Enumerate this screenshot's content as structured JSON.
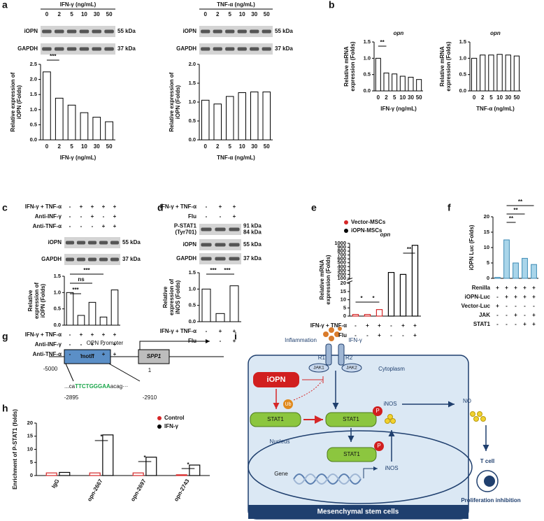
{
  "figure": {
    "panels": [
      "a",
      "b",
      "c",
      "d",
      "e",
      "f",
      "g",
      "h",
      "i"
    ]
  },
  "blots": [
    {
      "header": "IFN-γ (ng/mL)",
      "lanes": [
        "0",
        "2",
        "5",
        "10",
        "30",
        "50"
      ],
      "rows": [
        {
          "name": [
            "iOPN"
          ],
          "sizes": [
            "55 kDa"
          ]
        },
        {
          "name": [
            "GAPDH"
          ],
          "sizes": [
            "37 kDa"
          ]
        }
      ]
    },
    {
      "header": "TNF-α (ng/mL)",
      "lanes": [
        "0",
        "2",
        "5",
        "10",
        "30",
        "50"
      ],
      "rows": [
        {
          "name": [
            "iOPN"
          ],
          "sizes": [
            "55 kDa"
          ]
        },
        {
          "name": [
            "GAPDH"
          ],
          "sizes": [
            "37 kDa"
          ]
        }
      ]
    },
    {
      "conditions": [
        {
          "name": "IFN-γ + TNF-α",
          "signs": [
            "-",
            "+",
            "+",
            "+",
            "+"
          ]
        },
        {
          "name": "Anti-INF-γ",
          "signs": [
            "-",
            "-",
            "+",
            "-",
            "+"
          ]
        },
        {
          "name": "Anti-TNF-α",
          "signs": [
            "-",
            "-",
            "-",
            "+",
            "+"
          ]
        }
      ],
      "rows": [
        {
          "name": [
            "iOPN"
          ],
          "sizes": [
            "55 kDa"
          ]
        },
        {
          "name": [
            "GAPDH"
          ],
          "sizes": [
            "37 kDa"
          ]
        }
      ]
    },
    {
      "conditions": [
        {
          "name": "IFN-γ + TNF-α",
          "signs": [
            "-",
            "+",
            "+"
          ]
        },
        {
          "name": "Flu",
          "signs": [
            "-",
            "-",
            "+"
          ]
        }
      ],
      "rows": [
        {
          "name": [
            "P-STAT1",
            "(Tyr701)"
          ],
          "sizes": [
            "91 kDa",
            "84 kDa"
          ]
        },
        {
          "name": [
            "iOPN"
          ],
          "sizes": [
            "55 kDa"
          ]
        },
        {
          "name": [
            "GAPDH"
          ],
          "sizes": [
            "37 kDa"
          ]
        }
      ]
    }
  ],
  "chart_data": [
    {
      "type": "bar",
      "ylabel": [
        "Relative expression of",
        "iOPN (Folds)"
      ],
      "xlabel": "IFN-γ (ng/mL)",
      "categories": [
        "0",
        "2",
        "5",
        "10",
        "30",
        "50"
      ],
      "values": [
        2.25,
        1.38,
        1.15,
        0.9,
        0.75,
        0.6
      ],
      "color": "#000000",
      "fill": "#ffffff",
      "ylim": [
        0,
        2.5
      ],
      "yticks": [
        {
          "value": 0,
          "label": "0.0"
        },
        {
          "value": 0.5,
          "label": "0.5"
        },
        {
          "value": 1,
          "label": "1.0"
        },
        {
          "value": 1.5,
          "label": "1.5"
        },
        {
          "value": 2,
          "label": "2.0"
        },
        {
          "value": 2.5,
          "label": "2.5"
        }
      ],
      "annotations": [
        "***"
      ]
    },
    {
      "type": "bar",
      "ylabel": [
        "Relative expression of",
        "iOPN (Folds)"
      ],
      "xlabel": "TNF-α (ng/mL)",
      "categories": [
        "0",
        "2",
        "5",
        "10",
        "30",
        "50"
      ],
      "values": [
        1.05,
        0.95,
        1.15,
        1.25,
        1.27,
        1.27
      ],
      "color": "#000000",
      "fill": "#ffffff",
      "ylim": [
        0,
        2
      ],
      "yticks": [
        {
          "value": 0,
          "label": "0.0"
        },
        {
          "value": 0.5,
          "label": "0.5"
        },
        {
          "value": 1,
          "label": "1.0"
        },
        {
          "value": 1.5,
          "label": "1.5"
        },
        {
          "value": 2,
          "label": "2.0"
        }
      ]
    },
    {
      "type": "bar",
      "title": "opn",
      "ylabel": [
        "Relative mRNA",
        "expression (Folds)"
      ],
      "xlabel": "IFN-γ (ng/mL)",
      "categories": [
        "0",
        "2",
        "5",
        "10",
        "30",
        "50"
      ],
      "values": [
        1.0,
        0.55,
        0.52,
        0.45,
        0.42,
        0.35
      ],
      "color": "#000000",
      "fill": "#ffffff",
      "ylim": [
        0,
        1.5
      ],
      "yticks": [
        {
          "value": 0,
          "label": "0.0"
        },
        {
          "value": 0.5,
          "label": "0.5"
        },
        {
          "value": 1,
          "label": "1.0"
        },
        {
          "value": 1.5,
          "label": "1.5"
        }
      ],
      "annotations": [
        "**"
      ]
    },
    {
      "type": "bar",
      "title": "opn",
      "ylabel": [
        "Relative mRNA",
        "expression (Folds)"
      ],
      "xlabel": "TNF-α (ng/mL)",
      "categories": [
        "0",
        "2",
        "5",
        "10",
        "30",
        "50"
      ],
      "values": [
        1.0,
        1.1,
        1.1,
        1.12,
        1.1,
        1.07
      ],
      "color": "#000000",
      "fill": "#ffffff",
      "ylim": [
        0,
        1.5
      ],
      "yticks": [
        {
          "value": 0,
          "label": "0.0"
        },
        {
          "value": 0.5,
          "label": "0.5"
        },
        {
          "value": 1,
          "label": "1.0"
        },
        {
          "value": 1.5,
          "label": "1.5"
        }
      ]
    },
    {
      "type": "bar",
      "ylabel": [
        "Relative",
        "expression of",
        "iOPN (Folds)"
      ],
      "categories": [
        null,
        null,
        null,
        null,
        null
      ],
      "values": [
        1.0,
        0.3,
        0.7,
        0.25,
        1.08
      ],
      "color": "#000000",
      "fill": "#ffffff",
      "ylim": [
        0,
        1.5
      ],
      "yticks": [
        {
          "value": 0,
          "label": "0.0"
        },
        {
          "value": 0.5,
          "label": "0.5"
        },
        {
          "value": 1,
          "label": "1.0"
        },
        {
          "value": 1.5,
          "label": "1.5"
        }
      ],
      "annotations": [
        "***",
        "ns",
        "***"
      ],
      "conditions": [
        {
          "name": "IFN-γ + TNF-α",
          "signs": [
            "-",
            "+",
            "+",
            "+",
            "+"
          ]
        },
        {
          "name": "Anti-INF-γ",
          "signs": [
            "-",
            "-",
            "+",
            "-",
            "+"
          ]
        },
        {
          "name": "Anti-TNF-α",
          "signs": [
            "-",
            "-",
            "-",
            "+",
            "+"
          ]
        }
      ]
    },
    {
      "type": "bar",
      "ylabel": [
        "Relative",
        "expression of",
        "iNOS (Folds)"
      ],
      "categories": [
        null,
        null,
        null
      ],
      "values": [
        1.0,
        0.25,
        1.1
      ],
      "color": "#000000",
      "fill": "#ffffff",
      "ylim": [
        0,
        1.5
      ],
      "yticks": [
        {
          "value": 0,
          "label": "0.0"
        },
        {
          "value": 0.5,
          "label": "0.5"
        },
        {
          "value": 1,
          "label": "1.0"
        },
        {
          "value": 1.5,
          "label": "1.5"
        }
      ],
      "annotations": [
        "***",
        "***"
      ],
      "conditions": [
        {
          "name": "IFN-γ + TNF-α",
          "signs": [
            "-",
            "+",
            "+"
          ]
        },
        {
          "name": "Flu",
          "signs": [
            "-",
            "-",
            "+"
          ]
        }
      ]
    },
    {
      "type": "bar",
      "title": "opn",
      "ylabel": [
        "Relative mRNA",
        "expression (Folds)"
      ],
      "categories": [
        null,
        null,
        null,
        null,
        null,
        null
      ],
      "series": [
        {
          "name": "Vector-MSCs",
          "color": "#d62728",
          "values": [
            1,
            1,
            4,
            null,
            null,
            null
          ]
        },
        {
          "name": "iOPN-MSCs",
          "color": "#000000",
          "values": [
            null,
            null,
            null,
            250,
            200,
            950
          ]
        }
      ],
      "ylim": [
        0,
        1000
      ],
      "axis_break": [
        20,
        100
      ],
      "yticks": [
        0,
        5,
        10,
        15,
        20,
        100,
        200,
        300,
        400,
        500,
        600,
        700,
        800,
        900,
        1000
      ],
      "annotations": [
        "*",
        "*",
        "**"
      ],
      "conditions": [
        {
          "name": "IFN-γ + TNF-α",
          "signs": [
            "-",
            "+",
            "+",
            "-",
            "+",
            "+"
          ]
        },
        {
          "name": "Flu",
          "signs": [
            "-",
            "-",
            "+",
            "-",
            "-",
            "+"
          ]
        }
      ]
    },
    {
      "type": "bar",
      "ylabel": [
        "iOPN Luc (Folds)"
      ],
      "categories": [
        null,
        null,
        null,
        null,
        null
      ],
      "values": [
        0.3,
        12.5,
        5,
        6.5,
        4.5
      ],
      "color": "#3d8bb5",
      "fill": "#a9d5ea",
      "ylim": [
        0,
        20
      ],
      "yticks": [
        0,
        5,
        10,
        15,
        20
      ],
      "annotations": [
        "**",
        "**",
        "**"
      ],
      "conditions": [
        {
          "name": "Renilla",
          "signs": [
            "+",
            "+",
            "+",
            "+",
            "+"
          ]
        },
        {
          "name": "iOPN-Luc",
          "signs": [
            "-",
            "+",
            "+",
            "+",
            "+"
          ]
        },
        {
          "name": "Vector-Luc",
          "signs": [
            "+",
            "-",
            "-",
            "-",
            "-"
          ]
        },
        {
          "name": "JAK",
          "signs": [
            "-",
            "-",
            "+",
            "-",
            "+"
          ]
        },
        {
          "name": "STAT1",
          "signs": [
            "-",
            "-",
            "-",
            "+",
            "+"
          ]
        }
      ]
    },
    {
      "type": "bar",
      "ylabel": [
        "Enrichment of P-STAT1 (folds)"
      ],
      "categories": [
        "IgG",
        "opn-2667",
        "opn-2697",
        "opn-2743"
      ],
      "series": [
        {
          "name": "Control",
          "color": "#d62728",
          "values": [
            1,
            1,
            1,
            0.3
          ]
        },
        {
          "name": "IFN-γ",
          "color": "#000000",
          "values": [
            1.2,
            15.5,
            7,
            4
          ]
        }
      ],
      "ylim": [
        0,
        20
      ],
      "yticks": [
        0,
        5,
        10,
        15,
        20
      ],
      "annotations": [
        "*",
        "*",
        "*"
      ]
    }
  ],
  "promoter": {
    "title": "OPN Promoter",
    "motif": "motif",
    "gene": "SPP1",
    "start": "-5000",
    "tss": "1",
    "seq_left": "...ca",
    "seq_motif": "TTCTGGGAA",
    "seq_right": "acag···",
    "pos_left": "-2895",
    "pos_right": "-2910"
  },
  "pathway": {
    "inflammation": "Inflammation",
    "ligand": "IFN-γ",
    "r1": "R1",
    "r2": "R2",
    "jak1": "JAK1",
    "jak2": "JAK2",
    "cytoplasm": "Cytoplasm",
    "iopn": "iOPN",
    "ub": "Ub",
    "stat1_a": "STAT1",
    "stat1_b": "STAT1",
    "p_b": "P",
    "inos_a": "iNOS",
    "no": "NO",
    "nucleus": "Nucleus",
    "stat1_c": "STAT1",
    "p_c": "P",
    "gene": "Gene",
    "inos_b": "iNOS",
    "tcell": "T cell",
    "effect": "Proliferation inhibition",
    "cell": "Mesenchymal stem cells"
  }
}
